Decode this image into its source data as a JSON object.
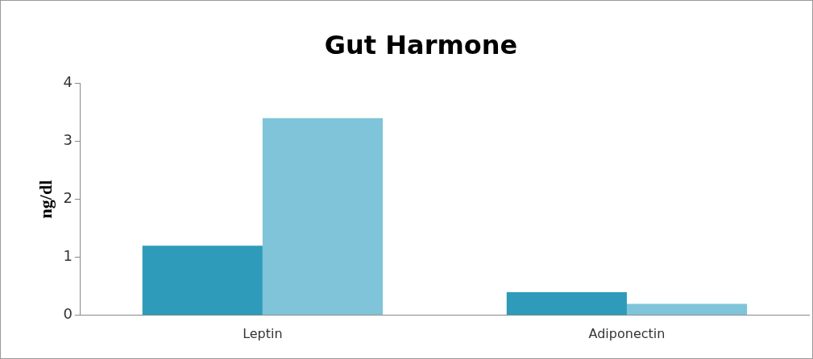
{
  "chart_data": {
    "type": "bar",
    "title": "Gut Harmone",
    "ylabel": "ng/dl",
    "categories": [
      "Leptin",
      "Adiponectin"
    ],
    "series": [
      {
        "color": "#2e9bba",
        "values": [
          1.2,
          0.4
        ]
      },
      {
        "color": "#7fc4d9",
        "values": [
          3.4,
          0.2
        ]
      }
    ],
    "ylim": [
      0,
      4
    ],
    "yticks": [
      0,
      1,
      2,
      3,
      4
    ],
    "grid": false,
    "legend": false
  }
}
